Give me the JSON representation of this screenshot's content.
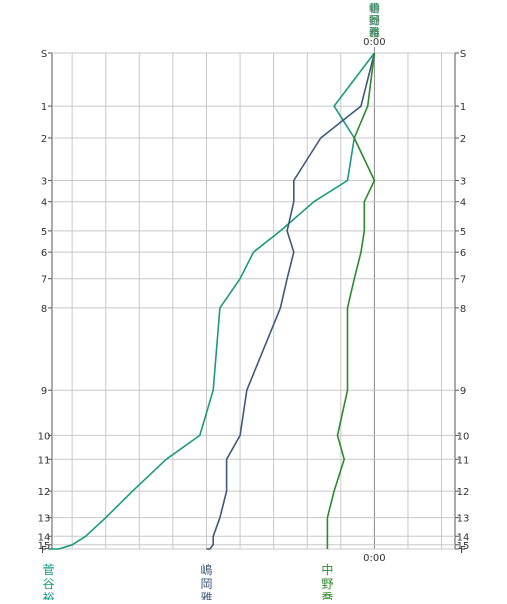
{
  "chart_data": {
    "type": "line",
    "y_ticks": [
      "S",
      "1",
      "2",
      "3",
      "4",
      "5",
      "6",
      "7",
      "8",
      "9",
      "10",
      "11",
      "12",
      "13",
      "14",
      "15",
      "F"
    ],
    "y_tick_positions": [
      0,
      10,
      16,
      24,
      28,
      33.5,
      37.5,
      42.5,
      48,
      63.5,
      72,
      76.5,
      82.5,
      87.5,
      91,
      92.6,
      93.4
    ],
    "y_range": [
      0,
      93.4
    ],
    "x_range": [
      -48,
      12
    ],
    "x_zero_label_top": "0:00",
    "x_zero_label_bottom": "0:00",
    "grid": true,
    "series": [
      {
        "name": "菅谷裕",
        "color": "#1a9a80",
        "label_color": "#1a9a80",
        "x": [
          0,
          -6,
          -3,
          -4,
          -9,
          -14,
          -18,
          -20,
          -23,
          -24,
          -26,
          -31,
          -36,
          -40,
          -43,
          -45,
          -47,
          -48.5
        ],
        "y": [
          0,
          10,
          16,
          24,
          28,
          33.5,
          37.5,
          42.5,
          48,
          63.5,
          72,
          76.5,
          82.5,
          87.5,
          91,
          92.6,
          93.4,
          93.4
        ]
      },
      {
        "name": "嶋岡雅",
        "color": "#3d5a7a",
        "label_color": "#3d5a7a",
        "x": [
          0,
          -2,
          -8,
          -12,
          -12,
          -13,
          -12,
          -13,
          -14,
          -19,
          -20,
          -22,
          -22,
          -23,
          -24,
          -24,
          -24.5,
          -25
        ],
        "y": [
          0,
          10,
          16,
          24,
          28,
          33.5,
          37.5,
          42.5,
          48,
          63.5,
          72,
          76.5,
          82.5,
          87.5,
          91,
          92.6,
          93.4,
          93.4
        ]
      },
      {
        "name": "中野喬",
        "color": "#2e8a2e",
        "label_color": "#2e8a2e",
        "x": [
          0,
          -1,
          -3,
          0,
          -1.5,
          -1.5,
          -2,
          -3,
          -4,
          -4,
          -5.5,
          -4.5,
          -6,
          -7,
          -7,
          -7,
          -7,
          -7
        ],
        "y": [
          0,
          10,
          16,
          24,
          28,
          33.5,
          37.5,
          42.5,
          48,
          63.5,
          72,
          76.5,
          82.5,
          87.5,
          91,
          92.6,
          93.4,
          93.4
        ]
      }
    ],
    "top_stacked_labels": [
      "菅谷裕",
      "嶋岡雅",
      "中野喬"
    ]
  }
}
